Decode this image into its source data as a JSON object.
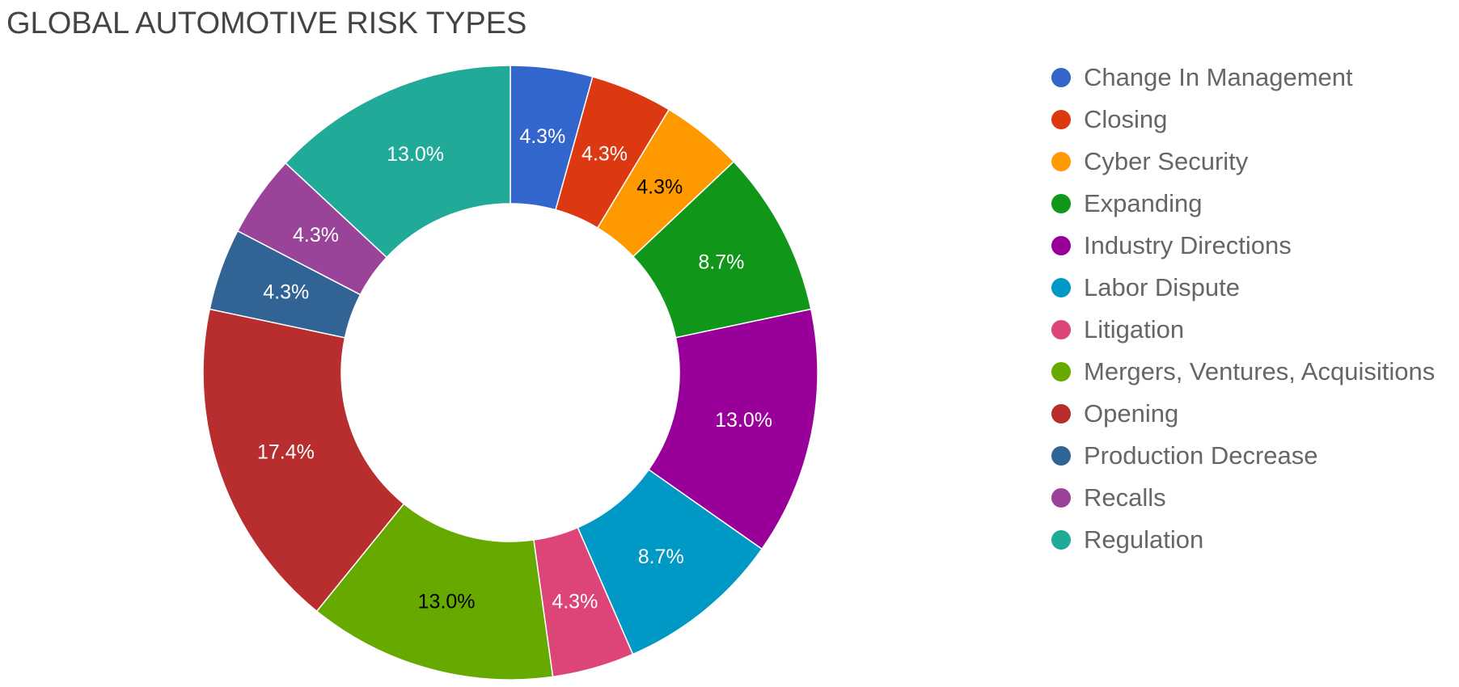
{
  "chart_data": {
    "type": "pie",
    "donut": true,
    "title": "GLOBAL AUTOMOTIVE RISK TYPES",
    "legend_position": "right",
    "slices": [
      {
        "label": "Change In Management",
        "value": 4.3,
        "display": "4.3%",
        "color": "#3366cc",
        "label_color": "#ffffff"
      },
      {
        "label": "Closing",
        "value": 4.3,
        "display": "4.3%",
        "color": "#dc3912",
        "label_color": "#ffffff"
      },
      {
        "label": "Cyber Security",
        "value": 4.3,
        "display": "4.3%",
        "color": "#ff9900",
        "label_color": "#000000"
      },
      {
        "label": "Expanding",
        "value": 8.7,
        "display": "8.7%",
        "color": "#109618",
        "label_color": "#ffffff"
      },
      {
        "label": "Industry Directions",
        "value": 13.0,
        "display": "13.0%",
        "color": "#990099",
        "label_color": "#ffffff"
      },
      {
        "label": "Labor Dispute",
        "value": 8.7,
        "display": "8.7%",
        "color": "#0099c6",
        "label_color": "#ffffff"
      },
      {
        "label": "Litigation",
        "value": 4.3,
        "display": "4.3%",
        "color": "#dd4477",
        "label_color": "#ffffff"
      },
      {
        "label": "Mergers, Ventures, Acquisitions",
        "value": 13.0,
        "display": "13.0%",
        "color": "#66aa00",
        "label_color": "#000000"
      },
      {
        "label": "Opening",
        "value": 17.4,
        "display": "17.4%",
        "color": "#b82e2e",
        "label_color": "#ffffff"
      },
      {
        "label": "Production Decrease",
        "value": 4.3,
        "display": "4.3%",
        "color": "#316395",
        "label_color": "#ffffff"
      },
      {
        "label": "Recalls",
        "value": 4.3,
        "display": "4.3%",
        "color": "#994499",
        "label_color": "#ffffff"
      },
      {
        "label": "Regulation",
        "value": 13.0,
        "display": "13.0%",
        "color": "#22aa99",
        "label_color": "#ffffff"
      }
    ]
  }
}
